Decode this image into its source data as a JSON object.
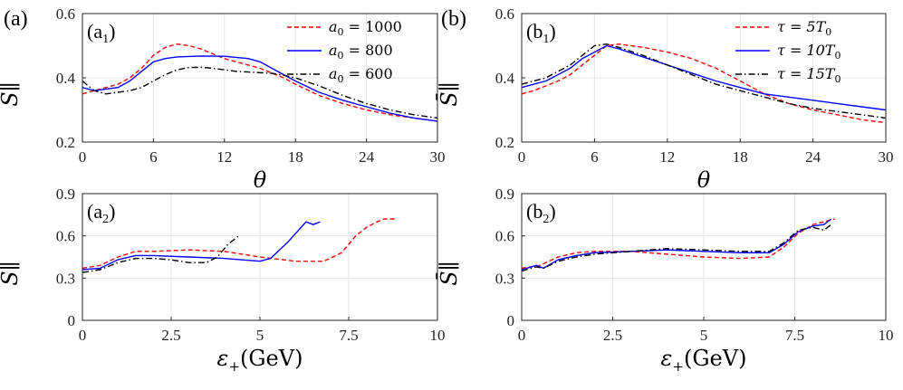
{
  "figure_labels": {
    "a": "(a)",
    "b": "(b)"
  },
  "ylabel": "S̄∥",
  "colors": {
    "red": "#ff0000",
    "blue": "#0000ff",
    "black": "#000000"
  },
  "chart_data": [
    {
      "id": "a1",
      "type": "line",
      "sublabel": "(a1)",
      "sublabel_main": "(a",
      "sublabel_sub": "1",
      "sublabel_close": ")",
      "xlabel": "θ",
      "ylabel": "S̄∥",
      "xlim": [
        0,
        30
      ],
      "ylim": [
        0.2,
        0.6
      ],
      "xticks": [
        "0",
        "6",
        "12",
        "18",
        "24",
        "30"
      ],
      "yticks": [
        "0.2",
        "0.4",
        "0.6"
      ],
      "legend_position": "top-right",
      "series": [
        {
          "name": "a0 = 1000",
          "lbl_main": "a",
          "lbl_sub": "0",
          "lbl_rest": " = 1000",
          "color": "#ff0000",
          "dash": "dashed",
          "x": [
            0,
            1,
            2,
            3,
            4,
            5,
            6,
            7,
            8,
            9,
            10,
            11,
            12,
            13,
            14,
            15,
            16,
            17,
            18,
            20,
            22,
            24,
            26,
            28,
            30
          ],
          "y": [
            0.35,
            0.36,
            0.37,
            0.38,
            0.4,
            0.43,
            0.47,
            0.495,
            0.505,
            0.5,
            0.49,
            0.475,
            0.46,
            0.45,
            0.44,
            0.43,
            0.415,
            0.4,
            0.38,
            0.345,
            0.32,
            0.3,
            0.285,
            0.275,
            0.265
          ]
        },
        {
          "name": "a0 = 800",
          "lbl_main": "a",
          "lbl_sub": "0",
          "lbl_rest": " = 800",
          "color": "#0000ff",
          "dash": "solid",
          "x": [
            0,
            1,
            2,
            3,
            4,
            5,
            6,
            7,
            8,
            10,
            12,
            14,
            15,
            16,
            17,
            18,
            20,
            22,
            24,
            26,
            28,
            30
          ],
          "y": [
            0.37,
            0.36,
            0.365,
            0.37,
            0.39,
            0.42,
            0.45,
            0.46,
            0.465,
            0.468,
            0.467,
            0.46,
            0.45,
            0.43,
            0.41,
            0.39,
            0.355,
            0.33,
            0.31,
            0.29,
            0.275,
            0.265
          ]
        },
        {
          "name": "a0 = 600",
          "lbl_main": "a",
          "lbl_sub": "0",
          "lbl_rest": " = 600",
          "color": "#000000",
          "dash": "dashdot",
          "x": [
            0,
            1,
            2,
            3,
            4,
            5,
            6,
            7,
            8,
            9,
            10,
            11,
            12,
            13,
            14,
            15,
            16,
            17,
            18,
            20,
            22,
            24,
            26,
            28,
            30
          ],
          "y": [
            0.39,
            0.36,
            0.35,
            0.355,
            0.36,
            0.37,
            0.39,
            0.41,
            0.425,
            0.432,
            0.433,
            0.43,
            0.425,
            0.42,
            0.418,
            0.416,
            0.414,
            0.408,
            0.4,
            0.375,
            0.345,
            0.32,
            0.3,
            0.285,
            0.275
          ]
        }
      ]
    },
    {
      "id": "b1",
      "type": "line",
      "sublabel": "(b1)",
      "sublabel_main": "(b",
      "sublabel_sub": "1",
      "sublabel_close": ")",
      "xlabel": "θ",
      "ylabel": "S̄∥",
      "xlim": [
        0,
        30
      ],
      "ylim": [
        0.2,
        0.6
      ],
      "xticks": [
        "0",
        "6",
        "12",
        "18",
        "24",
        "30"
      ],
      "yticks": [
        "0.2",
        "0.4",
        "0.6"
      ],
      "legend_position": "top-right",
      "series": [
        {
          "name": "τ = 5T0",
          "lbl_main": "τ = 5T",
          "lbl_sub": "0",
          "lbl_rest": "",
          "color": "#ff0000",
          "dash": "dashed",
          "x": [
            0,
            1,
            2,
            3,
            4,
            5,
            6,
            7,
            8,
            10,
            12,
            14,
            16,
            18,
            20,
            22,
            24,
            26,
            28,
            30
          ],
          "y": [
            0.35,
            0.36,
            0.375,
            0.39,
            0.41,
            0.44,
            0.47,
            0.5,
            0.505,
            0.495,
            0.48,
            0.46,
            0.43,
            0.39,
            0.35,
            0.32,
            0.3,
            0.285,
            0.27,
            0.26
          ]
        },
        {
          "name": "τ = 10T0",
          "lbl_main": "τ = 10T",
          "lbl_sub": "0",
          "lbl_rest": "",
          "color": "#0000ff",
          "dash": "solid",
          "x": [
            0,
            1,
            2,
            3,
            4,
            5,
            6,
            7,
            8,
            10,
            12,
            14,
            16,
            18,
            20,
            22,
            24,
            26,
            28,
            30
          ],
          "y": [
            0.37,
            0.38,
            0.39,
            0.41,
            0.43,
            0.46,
            0.48,
            0.5,
            0.49,
            0.465,
            0.44,
            0.415,
            0.39,
            0.37,
            0.35,
            0.34,
            0.33,
            0.32,
            0.31,
            0.3
          ]
        },
        {
          "name": "τ = 15T0",
          "lbl_main": "τ = 15T",
          "lbl_sub": "0",
          "lbl_rest": "",
          "color": "#000000",
          "dash": "dashdot",
          "x": [
            0,
            1,
            2,
            3,
            4,
            5,
            6,
            7,
            8,
            10,
            12,
            14,
            16,
            18,
            20,
            22,
            24,
            26,
            28,
            30
          ],
          "y": [
            0.38,
            0.39,
            0.4,
            0.42,
            0.44,
            0.47,
            0.5,
            0.505,
            0.495,
            0.47,
            0.44,
            0.41,
            0.38,
            0.36,
            0.34,
            0.32,
            0.305,
            0.295,
            0.285,
            0.275
          ]
        }
      ]
    },
    {
      "id": "a2",
      "type": "line",
      "sublabel": "(a2)",
      "sublabel_main": "(a",
      "sublabel_sub": "2",
      "sublabel_close": ")",
      "xlabel": "ε+(GeV)",
      "ylabel": "S̄∥",
      "xlim": [
        0,
        10
      ],
      "ylim": [
        0,
        0.9
      ],
      "xticks": [
        "0",
        "2.5",
        "5",
        "7.5",
        "10"
      ],
      "yticks": [
        "0",
        "0.3",
        "0.6",
        "0.9"
      ],
      "series": [
        {
          "name": "a0 = 1000",
          "color": "#ff0000",
          "dash": "dashed",
          "x": [
            0,
            0.5,
            1,
            1.5,
            2,
            3,
            4,
            5,
            6,
            6.8,
            7.3,
            7.7,
            8,
            8.3,
            8.5,
            8.8
          ],
          "y": [
            0.37,
            0.39,
            0.45,
            0.49,
            0.49,
            0.5,
            0.49,
            0.45,
            0.42,
            0.42,
            0.48,
            0.6,
            0.66,
            0.7,
            0.72,
            0.72
          ]
        },
        {
          "name": "a0 = 800",
          "color": "#0000ff",
          "dash": "solid",
          "x": [
            0,
            0.5,
            1,
            1.5,
            2,
            3,
            4,
            5,
            5.3,
            5.8,
            6.3,
            6.5,
            6.7
          ],
          "y": [
            0.36,
            0.37,
            0.43,
            0.46,
            0.46,
            0.45,
            0.44,
            0.42,
            0.44,
            0.56,
            0.7,
            0.68,
            0.7
          ]
        },
        {
          "name": "a0 = 600",
          "color": "#000000",
          "dash": "dashdot",
          "x": [
            0,
            0.5,
            1,
            1.5,
            2,
            2.5,
            3,
            3.5,
            3.8,
            4.1,
            4.4
          ],
          "y": [
            0.34,
            0.36,
            0.41,
            0.44,
            0.44,
            0.43,
            0.41,
            0.41,
            0.45,
            0.54,
            0.6
          ]
        }
      ]
    },
    {
      "id": "b2",
      "type": "line",
      "sublabel": "(b2)",
      "sublabel_main": "(b",
      "sublabel_sub": "2",
      "sublabel_close": ")",
      "xlabel": "ε+(GeV)",
      "ylabel": "S̄∥",
      "xlim": [
        0,
        10
      ],
      "ylim": [
        0,
        0.9
      ],
      "xticks": [
        "0",
        "2.5",
        "5",
        "7.5",
        "10"
      ],
      "yticks": [
        "0",
        "0.3",
        "0.6",
        "0.9"
      ],
      "series": [
        {
          "name": "τ = 5T0",
          "color": "#ff0000",
          "dash": "dashed",
          "x": [
            0,
            0.5,
            1,
            1.5,
            2,
            3,
            4,
            5,
            6,
            6.8,
            7.2,
            7.6,
            8,
            8.3,
            8.6
          ],
          "y": [
            0.37,
            0.39,
            0.45,
            0.48,
            0.49,
            0.49,
            0.47,
            0.45,
            0.44,
            0.45,
            0.52,
            0.62,
            0.68,
            0.7,
            0.72
          ]
        },
        {
          "name": "τ = 10T0",
          "color": "#0000ff",
          "dash": "solid",
          "x": [
            0,
            0.4,
            0.6,
            1,
            1.5,
            2,
            3,
            4,
            5,
            6,
            6.8,
            7.2,
            7.6,
            8,
            8.3,
            8.5
          ],
          "y": [
            0.36,
            0.39,
            0.37,
            0.43,
            0.46,
            0.48,
            0.49,
            0.5,
            0.49,
            0.48,
            0.48,
            0.54,
            0.63,
            0.67,
            0.68,
            0.72
          ]
        },
        {
          "name": "τ = 15T0",
          "color": "#000000",
          "dash": "dashdot",
          "x": [
            0,
            0.4,
            0.6,
            1,
            1.5,
            2,
            3,
            4,
            5,
            6,
            6.8,
            7.2,
            7.6,
            8,
            8.3,
            8.5
          ],
          "y": [
            0.35,
            0.38,
            0.37,
            0.42,
            0.45,
            0.47,
            0.49,
            0.51,
            0.5,
            0.49,
            0.49,
            0.55,
            0.64,
            0.66,
            0.64,
            0.68
          ]
        }
      ]
    }
  ]
}
